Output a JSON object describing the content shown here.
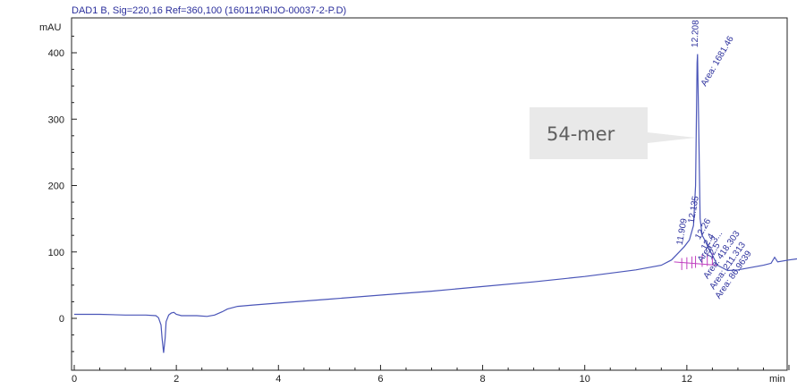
{
  "chart_data": {
    "type": "line",
    "title": "DAD1 B, Sig=220,16 Ref=360,100 (160112\\RIJO-00037-2-P.D)",
    "ylabel": "mAU",
    "xlabel": "min",
    "xlim": [
      0,
      14
    ],
    "ylim": [
      -70,
      440
    ],
    "x_ticks": [
      "0",
      "2",
      "4",
      "6",
      "8",
      "10",
      "12"
    ],
    "y_ticks": [
      "0",
      "100",
      "200",
      "300",
      "400"
    ],
    "series": [
      {
        "color": "#4a55b8",
        "points": [
          [
            0,
            6
          ],
          [
            0.5,
            6
          ],
          [
            1.0,
            5
          ],
          [
            1.4,
            5
          ],
          [
            1.6,
            4
          ],
          [
            1.65,
            1
          ],
          [
            1.7,
            -10
          ],
          [
            1.72,
            -30
          ],
          [
            1.75,
            -52
          ],
          [
            1.78,
            -30
          ],
          [
            1.8,
            -5
          ],
          [
            1.85,
            5
          ],
          [
            1.9,
            8
          ],
          [
            1.95,
            9
          ],
          [
            2.0,
            6
          ],
          [
            2.1,
            4
          ],
          [
            2.4,
            4
          ],
          [
            2.6,
            3
          ],
          [
            2.75,
            5
          ],
          [
            2.9,
            10
          ],
          [
            3.0,
            14
          ],
          [
            3.2,
            18
          ],
          [
            3.5,
            20
          ],
          [
            4.0,
            23
          ],
          [
            5.0,
            29
          ],
          [
            6.0,
            35
          ],
          [
            7.0,
            41
          ],
          [
            8.0,
            48
          ],
          [
            9.0,
            55
          ],
          [
            10.0,
            63
          ],
          [
            11.0,
            73
          ],
          [
            11.5,
            80
          ],
          [
            11.7,
            88
          ],
          [
            11.85,
            100
          ],
          [
            11.95,
            108
          ],
          [
            12.05,
            118
          ],
          [
            12.13,
            140
          ],
          [
            12.17,
            200
          ],
          [
            12.2,
            385
          ],
          [
            12.21,
            398
          ],
          [
            12.23,
            300
          ],
          [
            12.26,
            150
          ],
          [
            12.3,
            125
          ],
          [
            12.35,
            118
          ],
          [
            12.4,
            110
          ],
          [
            12.5,
            95
          ],
          [
            12.6,
            80
          ],
          [
            12.8,
            72
          ],
          [
            13.0,
            73
          ],
          [
            13.5,
            80
          ],
          [
            13.65,
            83
          ],
          [
            13.72,
            92
          ],
          [
            13.78,
            85
          ],
          [
            14.0,
            88
          ],
          [
            14.2,
            90
          ]
        ]
      }
    ],
    "peaks": [
      {
        "time": "11.909",
        "area": ""
      },
      {
        "time": "12.135",
        "area": "Area: 3..."
      },
      {
        "time": "12.208",
        "area": "Area: 1681.46"
      },
      {
        "time": "12.26",
        "area": "Area: 418.303"
      },
      {
        "time": "12.4",
        "area": "Area: 211.313"
      },
      {
        "time": "12.5",
        "area": "Area: 86.9639"
      }
    ],
    "annotation": "54-mer"
  }
}
